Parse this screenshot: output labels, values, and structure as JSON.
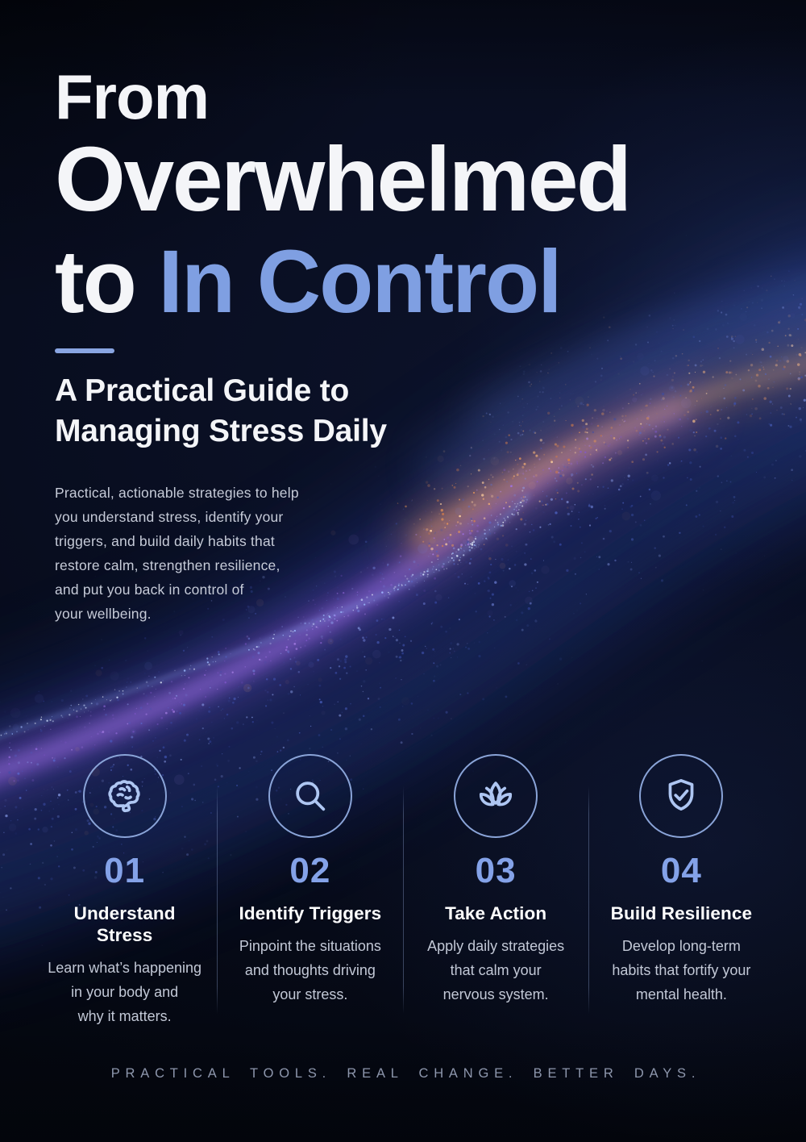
{
  "header": {
    "title_line1": "From",
    "title_line2": "Overwhelmed",
    "title_line3_prefix": "to ",
    "title_line3_accent": "In Control",
    "subtitle": "A Practical Guide to\nManaging Stress Daily",
    "intro": "Practical, actionable strategies to help\nyou understand stress, identify your\ntriggers, and build daily habits that\nrestore calm, strengthen resilience,\nand put you back in control of\nyour wellbeing."
  },
  "steps": [
    {
      "number": "01",
      "title": "Understand Stress",
      "icon": "brain-icon",
      "description": "Learn what’s happening\nin your body and\nwhy it matters."
    },
    {
      "number": "02",
      "title": "Identify Triggers",
      "icon": "magnifier-icon",
      "description": "Pinpoint the situations\nand thoughts driving\nyour stress."
    },
    {
      "number": "03",
      "title": "Take Action",
      "icon": "lotus-icon",
      "description": "Apply daily strategies\nthat calm your\nnervous system."
    },
    {
      "number": "04",
      "title": "Build Resilience",
      "icon": "shield-check-icon",
      "description": "Develop long-term\nhabits that fortify your\nmental health."
    }
  ],
  "footer": {
    "tagline": "PRACTICAL TOOLS. REAL CHANGE. BETTER DAYS."
  },
  "colors": {
    "background": "#04060f",
    "accent_blue": "#7f9fe2",
    "title_white": "#f4f5f8",
    "body_text": "#c6cbd8",
    "muted_text": "#8e97ad",
    "number_blue": "#84a2e8",
    "divider_rule": "#89a5e2",
    "circle_stroke": "#8aa4d8",
    "icon_stroke": "#aec6f2",
    "wave": {
      "blue": [
        "#5a74e0",
        "#4a60c8",
        "#7d92ee",
        "#3a4fb0",
        "#93a8f5"
      ],
      "purple": [
        "#a273ea",
        "#8a5cd8",
        "#b98cf5"
      ],
      "orange": [
        "#f2ae74",
        "#e89558",
        "#ffcf9e",
        "#d97f4a"
      ],
      "edge": [
        "#cfe0ff",
        "#9dbcff",
        "#eef5ff"
      ],
      "mixed": [
        "#8fa4ef",
        "#f0b585",
        "#6d80d0"
      ],
      "bokeh": [
        "#7487e8",
        "#a98ef0",
        "#e8a878"
      ]
    }
  }
}
